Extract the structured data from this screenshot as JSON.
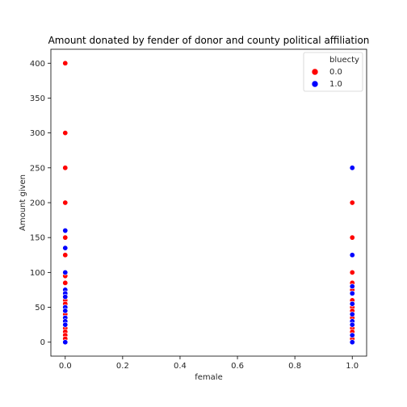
{
  "chart_data": {
    "type": "scatter",
    "title": "Amount donated by fender of donor and county political affiliation",
    "xlabel": "female",
    "ylabel": "Amount given",
    "xlim": [
      -0.05,
      1.05
    ],
    "ylim": [
      -20,
      420
    ],
    "xticks": [
      0.0,
      0.2,
      0.4,
      0.6,
      0.8,
      1.0
    ],
    "xtick_labels": [
      "0.0",
      "0.2",
      "0.4",
      "0.6",
      "0.8",
      "1.0"
    ],
    "yticks": [
      0,
      50,
      100,
      150,
      200,
      250,
      300,
      350,
      400
    ],
    "ytick_labels": [
      "0",
      "50",
      "100",
      "150",
      "200",
      "250",
      "300",
      "350",
      "400"
    ],
    "grid": false,
    "legend": {
      "title": "bluecty",
      "placement": "top-right",
      "entries": [
        {
          "label": "0.0",
          "color": "#ff0000"
        },
        {
          "label": "1.0",
          "color": "#0000ff"
        }
      ]
    },
    "series": [
      {
        "name": "0.0",
        "color": "#ff0000",
        "points": [
          {
            "x": 0,
            "y": 400
          },
          {
            "x": 0,
            "y": 300
          },
          {
            "x": 0,
            "y": 250
          },
          {
            "x": 0,
            "y": 200
          },
          {
            "x": 0,
            "y": 150
          },
          {
            "x": 0,
            "y": 125
          },
          {
            "x": 0,
            "y": 95
          },
          {
            "x": 0,
            "y": 85
          },
          {
            "x": 0,
            "y": 75
          },
          {
            "x": 0,
            "y": 60
          },
          {
            "x": 0,
            "y": 55
          },
          {
            "x": 0,
            "y": 50
          },
          {
            "x": 0,
            "y": 40
          },
          {
            "x": 0,
            "y": 30
          },
          {
            "x": 0,
            "y": 20
          },
          {
            "x": 0,
            "y": 15
          },
          {
            "x": 0,
            "y": 10
          },
          {
            "x": 0,
            "y": 5
          },
          {
            "x": 1,
            "y": 200
          },
          {
            "x": 1,
            "y": 150
          },
          {
            "x": 1,
            "y": 100
          },
          {
            "x": 1,
            "y": 85
          },
          {
            "x": 1,
            "y": 75
          },
          {
            "x": 1,
            "y": 60
          },
          {
            "x": 1,
            "y": 50
          },
          {
            "x": 1,
            "y": 45
          },
          {
            "x": 1,
            "y": 35
          },
          {
            "x": 1,
            "y": 25
          },
          {
            "x": 1,
            "y": 20
          },
          {
            "x": 1,
            "y": 15
          },
          {
            "x": 1,
            "y": 10
          },
          {
            "x": 1,
            "y": 5
          }
        ]
      },
      {
        "name": "1.0",
        "color": "#0000ff",
        "points": [
          {
            "x": 0,
            "y": 160
          },
          {
            "x": 0,
            "y": 135
          },
          {
            "x": 0,
            "y": 100
          },
          {
            "x": 0,
            "y": 75
          },
          {
            "x": 0,
            "y": 70
          },
          {
            "x": 0,
            "y": 65
          },
          {
            "x": 0,
            "y": 50
          },
          {
            "x": 0,
            "y": 45
          },
          {
            "x": 0,
            "y": 35
          },
          {
            "x": 0,
            "y": 30
          },
          {
            "x": 0,
            "y": 25
          },
          {
            "x": 0,
            "y": 0
          },
          {
            "x": 1,
            "y": 250
          },
          {
            "x": 1,
            "y": 125
          },
          {
            "x": 1,
            "y": 80
          },
          {
            "x": 1,
            "y": 70
          },
          {
            "x": 1,
            "y": 55
          },
          {
            "x": 1,
            "y": 40
          },
          {
            "x": 1,
            "y": 30
          },
          {
            "x": 1,
            "y": 25
          },
          {
            "x": 1,
            "y": 10
          },
          {
            "x": 1,
            "y": 0
          }
        ]
      }
    ]
  }
}
